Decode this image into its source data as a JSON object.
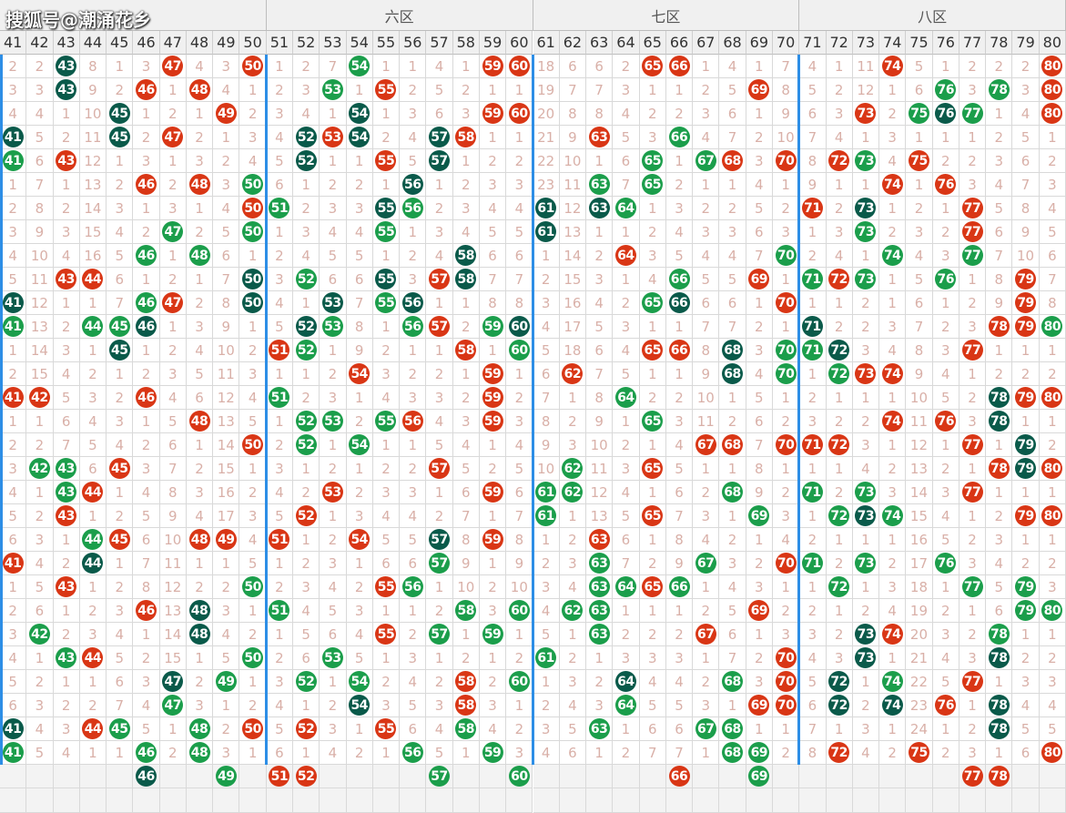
{
  "watermark": "搜狐号@潮涌花乡",
  "zones": [
    {
      "label": "",
      "from": 41,
      "to": 50
    },
    {
      "label": "六区",
      "from": 51,
      "to": 60
    },
    {
      "label": "七区",
      "from": 61,
      "to": 70
    },
    {
      "label": "八区",
      "from": 71,
      "to": 80
    }
  ],
  "columns": [
    41,
    42,
    43,
    44,
    45,
    46,
    47,
    48,
    49,
    50,
    51,
    52,
    53,
    54,
    55,
    56,
    57,
    58,
    59,
    60,
    61,
    62,
    63,
    64,
    65,
    66,
    67,
    68,
    69,
    70,
    71,
    72,
    73,
    74,
    75,
    76,
    77,
    78,
    79,
    80
  ],
  "ball_colors": {
    "r": "#d93615",
    "g": "#1b9e4b",
    "d": "#0a5a4a"
  },
  "rows": [
    [
      "2",
      "2",
      "43d",
      "8",
      "1",
      "3",
      "47r",
      "4",
      "3",
      "50r",
      "1",
      "2",
      "7",
      "54g",
      "1",
      "1",
      "4",
      "1",
      "59r",
      "60r",
      "18",
      "6",
      "6",
      "2",
      "65r",
      "66r",
      "1",
      "4",
      "1",
      "7",
      "4",
      "1",
      "11",
      "74r",
      "5",
      "1",
      "2",
      "2",
      "2",
      "80r"
    ],
    [
      "3",
      "3",
      "43d",
      "9",
      "2",
      "46r",
      "1",
      "48r",
      "4",
      "1",
      "2",
      "3",
      "53g",
      "1",
      "55r",
      "2",
      "5",
      "2",
      "1",
      "1",
      "19",
      "7",
      "7",
      "3",
      "1",
      "1",
      "2",
      "5",
      "69r",
      "8",
      "5",
      "2",
      "12",
      "1",
      "6",
      "76g",
      "3",
      "78g",
      "3",
      "80r"
    ],
    [
      "4",
      "4",
      "1",
      "10",
      "45d",
      "1",
      "2",
      "1",
      "49r",
      "2",
      "3",
      "4",
      "1",
      "54d",
      "1",
      "3",
      "6",
      "3",
      "59r",
      "60r",
      "20",
      "8",
      "8",
      "4",
      "2",
      "2",
      "3",
      "6",
      "1",
      "9",
      "6",
      "3",
      "73r",
      "2",
      "75g",
      "76d",
      "77g",
      "1",
      "4",
      "80r"
    ],
    [
      "41d",
      "5",
      "2",
      "11",
      "45d",
      "2",
      "47r",
      "2",
      "1",
      "3",
      "4",
      "52d",
      "53r",
      "54d",
      "2",
      "4",
      "57d",
      "58r",
      "1",
      "1",
      "21",
      "9",
      "63r",
      "5",
      "3",
      "66g",
      "4",
      "7",
      "2",
      "10",
      "7",
      "4",
      "1",
      "3",
      "1",
      "1",
      "1",
      "2",
      "5",
      "1"
    ],
    [
      "41g",
      "6",
      "43r",
      "12",
      "1",
      "3",
      "1",
      "3",
      "2",
      "4",
      "5",
      "52d",
      "1",
      "1",
      "55r",
      "5",
      "57d",
      "1",
      "2",
      "2",
      "22",
      "10",
      "1",
      "6",
      "65g",
      "1",
      "67g",
      "68r",
      "3",
      "70r",
      "8",
      "72r",
      "73g",
      "4",
      "75r",
      "2",
      "2",
      "3",
      "6",
      "2"
    ],
    [
      "1",
      "7",
      "1",
      "13",
      "2",
      "46r",
      "2",
      "48r",
      "3",
      "50g",
      "6",
      "1",
      "2",
      "2",
      "1",
      "56d",
      "1",
      "2",
      "3",
      "3",
      "23",
      "11",
      "63g",
      "7",
      "65g",
      "2",
      "1",
      "1",
      "4",
      "1",
      "9",
      "1",
      "1",
      "74r",
      "1",
      "76r",
      "3",
      "4",
      "7",
      "3"
    ],
    [
      "2",
      "8",
      "2",
      "14",
      "3",
      "1",
      "3",
      "1",
      "4",
      "50r",
      "51g",
      "2",
      "3",
      "3",
      "55d",
      "56g",
      "2",
      "3",
      "4",
      "4",
      "61d",
      "12",
      "63d",
      "64g",
      "1",
      "3",
      "2",
      "2",
      "5",
      "2",
      "71r",
      "2",
      "73d",
      "1",
      "2",
      "1",
      "77r",
      "5",
      "8",
      "4"
    ],
    [
      "3",
      "9",
      "3",
      "15",
      "4",
      "2",
      "47g",
      "2",
      "5",
      "50g",
      "1",
      "3",
      "4",
      "4",
      "55g",
      "1",
      "3",
      "4",
      "5",
      "5",
      "61d",
      "13",
      "1",
      "1",
      "2",
      "4",
      "3",
      "3",
      "6",
      "3",
      "1",
      "3",
      "73g",
      "2",
      "3",
      "2",
      "77r",
      "6",
      "9",
      "5"
    ],
    [
      "4",
      "10",
      "4",
      "16",
      "5",
      "46g",
      "1",
      "48g",
      "6",
      "1",
      "2",
      "4",
      "5",
      "5",
      "1",
      "2",
      "4",
      "58d",
      "6",
      "6",
      "1",
      "14",
      "2",
      "64r",
      "3",
      "5",
      "4",
      "4",
      "7",
      "70g",
      "2",
      "4",
      "1",
      "74g",
      "4",
      "3",
      "77g",
      "7",
      "10",
      "6"
    ],
    [
      "5",
      "11",
      "43r",
      "44r",
      "6",
      "1",
      "2",
      "1",
      "7",
      "50d",
      "3",
      "52g",
      "6",
      "6",
      "55d",
      "3",
      "57r",
      "58d",
      "7",
      "7",
      "2",
      "15",
      "3",
      "1",
      "4",
      "66g",
      "5",
      "5",
      "69r",
      "1",
      "71g",
      "72r",
      "73g",
      "1",
      "5",
      "76g",
      "1",
      "8",
      "79r",
      "7"
    ],
    [
      "41d",
      "12",
      "1",
      "1",
      "7",
      "46g",
      "47r",
      "2",
      "8",
      "50d",
      "4",
      "1",
      "53d",
      "7",
      "55g",
      "56d",
      "1",
      "1",
      "8",
      "8",
      "3",
      "16",
      "4",
      "2",
      "65g",
      "66d",
      "6",
      "6",
      "1",
      "70r",
      "1",
      "1",
      "2",
      "1",
      "6",
      "1",
      "2",
      "9",
      "79r",
      "8"
    ],
    [
      "41g",
      "13",
      "2",
      "44g",
      "45g",
      "46d",
      "1",
      "3",
      "9",
      "1",
      "5",
      "52d",
      "53g",
      "8",
      "1",
      "56g",
      "57r",
      "2",
      "59g",
      "60d",
      "4",
      "17",
      "5",
      "3",
      "1",
      "1",
      "7",
      "7",
      "2",
      "1",
      "71d",
      "2",
      "2",
      "3",
      "7",
      "2",
      "3",
      "78r",
      "79r",
      "80g"
    ],
    [
      "1",
      "14",
      "3",
      "1",
      "45d",
      "1",
      "2",
      "4",
      "10",
      "2",
      "51r",
      "52g",
      "1",
      "9",
      "2",
      "1",
      "1",
      "58r",
      "1",
      "60g",
      "5",
      "18",
      "6",
      "4",
      "65r",
      "66r",
      "8",
      "68d",
      "3",
      "70g",
      "71g",
      "72d",
      "3",
      "4",
      "8",
      "3",
      "77r",
      "1",
      "1",
      "1"
    ],
    [
      "2",
      "15",
      "4",
      "2",
      "1",
      "2",
      "3",
      "5",
      "11",
      "3",
      "1",
      "1",
      "2",
      "54r",
      "3",
      "2",
      "2",
      "1",
      "59r",
      "1",
      "6",
      "62r",
      "7",
      "5",
      "1",
      "1",
      "9",
      "68d",
      "4",
      "70g",
      "1",
      "72g",
      "73r",
      "74r",
      "9",
      "4",
      "1",
      "2",
      "2",
      "2"
    ],
    [
      "41r",
      "42r",
      "5",
      "3",
      "2",
      "46r",
      "4",
      "6",
      "12",
      "4",
      "51g",
      "2",
      "3",
      "1",
      "4",
      "3",
      "3",
      "2",
      "59r",
      "2",
      "7",
      "1",
      "8",
      "64g",
      "2",
      "2",
      "10",
      "1",
      "5",
      "1",
      "2",
      "1",
      "1",
      "1",
      "10",
      "5",
      "2",
      "78d",
      "79r",
      "80r"
    ],
    [
      "1",
      "1",
      "6",
      "4",
      "3",
      "1",
      "5",
      "48r",
      "13",
      "5",
      "1",
      "52g",
      "53g",
      "2",
      "55g",
      "56r",
      "4",
      "3",
      "59r",
      "3",
      "8",
      "2",
      "9",
      "1",
      "65g",
      "3",
      "11",
      "2",
      "6",
      "2",
      "3",
      "2",
      "2",
      "74r",
      "11",
      "76r",
      "3",
      "78d",
      "1",
      "1"
    ],
    [
      "2",
      "2",
      "7",
      "5",
      "4",
      "2",
      "6",
      "1",
      "14",
      "50r",
      "2",
      "52g",
      "1",
      "54g",
      "1",
      "1",
      "5",
      "4",
      "1",
      "4",
      "9",
      "3",
      "10",
      "2",
      "1",
      "4",
      "67r",
      "68r",
      "7",
      "70r",
      "71r",
      "72r",
      "3",
      "1",
      "12",
      "1",
      "77r",
      "1",
      "79d",
      "2"
    ],
    [
      "3",
      "42g",
      "43g",
      "6",
      "45r",
      "3",
      "7",
      "2",
      "15",
      "1",
      "3",
      "1",
      "2",
      "1",
      "2",
      "2",
      "57r",
      "5",
      "2",
      "5",
      "10",
      "62g",
      "11",
      "3",
      "65r",
      "5",
      "1",
      "1",
      "8",
      "1",
      "1",
      "1",
      "4",
      "2",
      "13",
      "2",
      "1",
      "78r",
      "79d",
      "80r"
    ],
    [
      "4",
      "1",
      "43g",
      "44r",
      "1",
      "4",
      "8",
      "3",
      "16",
      "2",
      "4",
      "2",
      "53r",
      "2",
      "3",
      "3",
      "1",
      "6",
      "59r",
      "6",
      "61g",
      "62g",
      "12",
      "4",
      "1",
      "6",
      "2",
      "68g",
      "9",
      "2",
      "71g",
      "2",
      "73g",
      "3",
      "14",
      "3",
      "77r",
      "1",
      "1",
      "1"
    ],
    [
      "5",
      "2",
      "43r",
      "1",
      "2",
      "5",
      "9",
      "4",
      "17",
      "3",
      "5",
      "52r",
      "1",
      "3",
      "4",
      "4",
      "2",
      "7",
      "1",
      "7",
      "61g",
      "1",
      "13",
      "5",
      "65r",
      "7",
      "3",
      "1",
      "69g",
      "3",
      "1",
      "72g",
      "73d",
      "74g",
      "15",
      "4",
      "1",
      "2",
      "79r",
      "80r"
    ],
    [
      "6",
      "3",
      "1",
      "44g",
      "45r",
      "6",
      "10",
      "48r",
      "49r",
      "4",
      "51r",
      "1",
      "2",
      "54r",
      "5",
      "5",
      "57d",
      "8",
      "59r",
      "8",
      "1",
      "2",
      "63r",
      "6",
      "1",
      "8",
      "4",
      "2",
      "1",
      "4",
      "2",
      "1",
      "1",
      "1",
      "16",
      "5",
      "2",
      "3",
      "1",
      "1"
    ],
    [
      "41r",
      "4",
      "2",
      "44d",
      "1",
      "7",
      "11",
      "1",
      "1",
      "5",
      "1",
      "2",
      "3",
      "1",
      "6",
      "6",
      "57g",
      "9",
      "1",
      "9",
      "2",
      "3",
      "63g",
      "7",
      "2",
      "9",
      "67g",
      "3",
      "2",
      "70r",
      "71g",
      "2",
      "73g",
      "2",
      "17",
      "76g",
      "3",
      "4",
      "2",
      "2"
    ],
    [
      "1",
      "5",
      "43r",
      "1",
      "2",
      "8",
      "12",
      "2",
      "2",
      "50g",
      "2",
      "3",
      "4",
      "2",
      "55r",
      "56g",
      "1",
      "10",
      "2",
      "10",
      "3",
      "4",
      "63g",
      "64g",
      "65r",
      "66g",
      "1",
      "4",
      "3",
      "1",
      "1",
      "72g",
      "1",
      "3",
      "18",
      "1",
      "77g",
      "5",
      "79g",
      "3"
    ],
    [
      "2",
      "6",
      "1",
      "2",
      "3",
      "46r",
      "13",
      "48d",
      "3",
      "1",
      "51g",
      "4",
      "5",
      "3",
      "1",
      "1",
      "2",
      "58g",
      "3",
      "60g",
      "4",
      "62g",
      "63g",
      "1",
      "1",
      "1",
      "2",
      "5",
      "69r",
      "2",
      "2",
      "1",
      "2",
      "4",
      "19",
      "2",
      "1",
      "6",
      "79g",
      "80g"
    ],
    [
      "3",
      "42g",
      "2",
      "3",
      "4",
      "1",
      "14",
      "48d",
      "4",
      "2",
      "1",
      "5",
      "6",
      "4",
      "55r",
      "2",
      "57g",
      "1",
      "59g",
      "1",
      "5",
      "1",
      "63g",
      "2",
      "2",
      "2",
      "67r",
      "6",
      "1",
      "3",
      "3",
      "2",
      "73d",
      "74r",
      "20",
      "3",
      "2",
      "78g",
      "1",
      "1"
    ],
    [
      "4",
      "1",
      "43g",
      "44r",
      "5",
      "2",
      "15",
      "1",
      "5",
      "50g",
      "2",
      "6",
      "53g",
      "5",
      "1",
      "3",
      "1",
      "2",
      "1",
      "2",
      "61g",
      "2",
      "1",
      "3",
      "3",
      "3",
      "1",
      "7",
      "2",
      "70r",
      "4",
      "3",
      "73d",
      "1",
      "21",
      "4",
      "3",
      "78d",
      "2",
      "2"
    ],
    [
      "5",
      "2",
      "1",
      "1",
      "6",
      "3",
      "47d",
      "2",
      "49g",
      "1",
      "3",
      "52g",
      "1",
      "54g",
      "2",
      "4",
      "2",
      "58r",
      "2",
      "60g",
      "1",
      "3",
      "2",
      "64d",
      "4",
      "4",
      "2",
      "68g",
      "3",
      "70r",
      "5",
      "72d",
      "1",
      "74g",
      "22",
      "5",
      "77r",
      "1",
      "3",
      "3"
    ],
    [
      "6",
      "3",
      "2",
      "2",
      "7",
      "4",
      "47g",
      "3",
      "1",
      "2",
      "4",
      "1",
      "2",
      "54d",
      "3",
      "5",
      "3",
      "58r",
      "3",
      "1",
      "2",
      "4",
      "3",
      "64g",
      "5",
      "5",
      "3",
      "1",
      "69r",
      "70r",
      "6",
      "72d",
      "2",
      "74d",
      "23",
      "76r",
      "1",
      "78d",
      "4",
      "4"
    ],
    [
      "41d",
      "4",
      "3",
      "44r",
      "45g",
      "5",
      "1",
      "48g",
      "2",
      "50r",
      "5",
      "52r",
      "3",
      "1",
      "55r",
      "6",
      "4",
      "58g",
      "4",
      "2",
      "3",
      "5",
      "63g",
      "1",
      "6",
      "6",
      "67g",
      "68g",
      "1",
      "1",
      "7",
      "1",
      "3",
      "1",
      "24",
      "1",
      "2",
      "78d",
      "5",
      "5"
    ],
    [
      "41g",
      "5",
      "4",
      "1",
      "1",
      "46g",
      "2",
      "48g",
      "3",
      "1",
      "6",
      "1",
      "4",
      "2",
      "1",
      "56g",
      "5",
      "1",
      "59g",
      "3",
      "4",
      "6",
      "1",
      "2",
      "7",
      "7",
      "1",
      "68g",
      "69g",
      "2",
      "8",
      "72r",
      "4",
      "2",
      "75r",
      "2",
      "3",
      "1",
      "6",
      "80r"
    ],
    [
      "",
      "",
      "",
      "",
      "",
      "46d",
      "",
      "",
      "49g",
      "",
      "51r",
      "52r",
      "",
      "",
      "",
      "",
      "57g",
      "",
      "",
      "60g",
      "",
      "",
      "",
      "",
      "",
      "66r",
      "",
      "",
      "69g",
      "",
      "",
      "",
      "",
      "",
      "",
      "",
      "77r",
      "78r",
      "",
      ""
    ]
  ]
}
